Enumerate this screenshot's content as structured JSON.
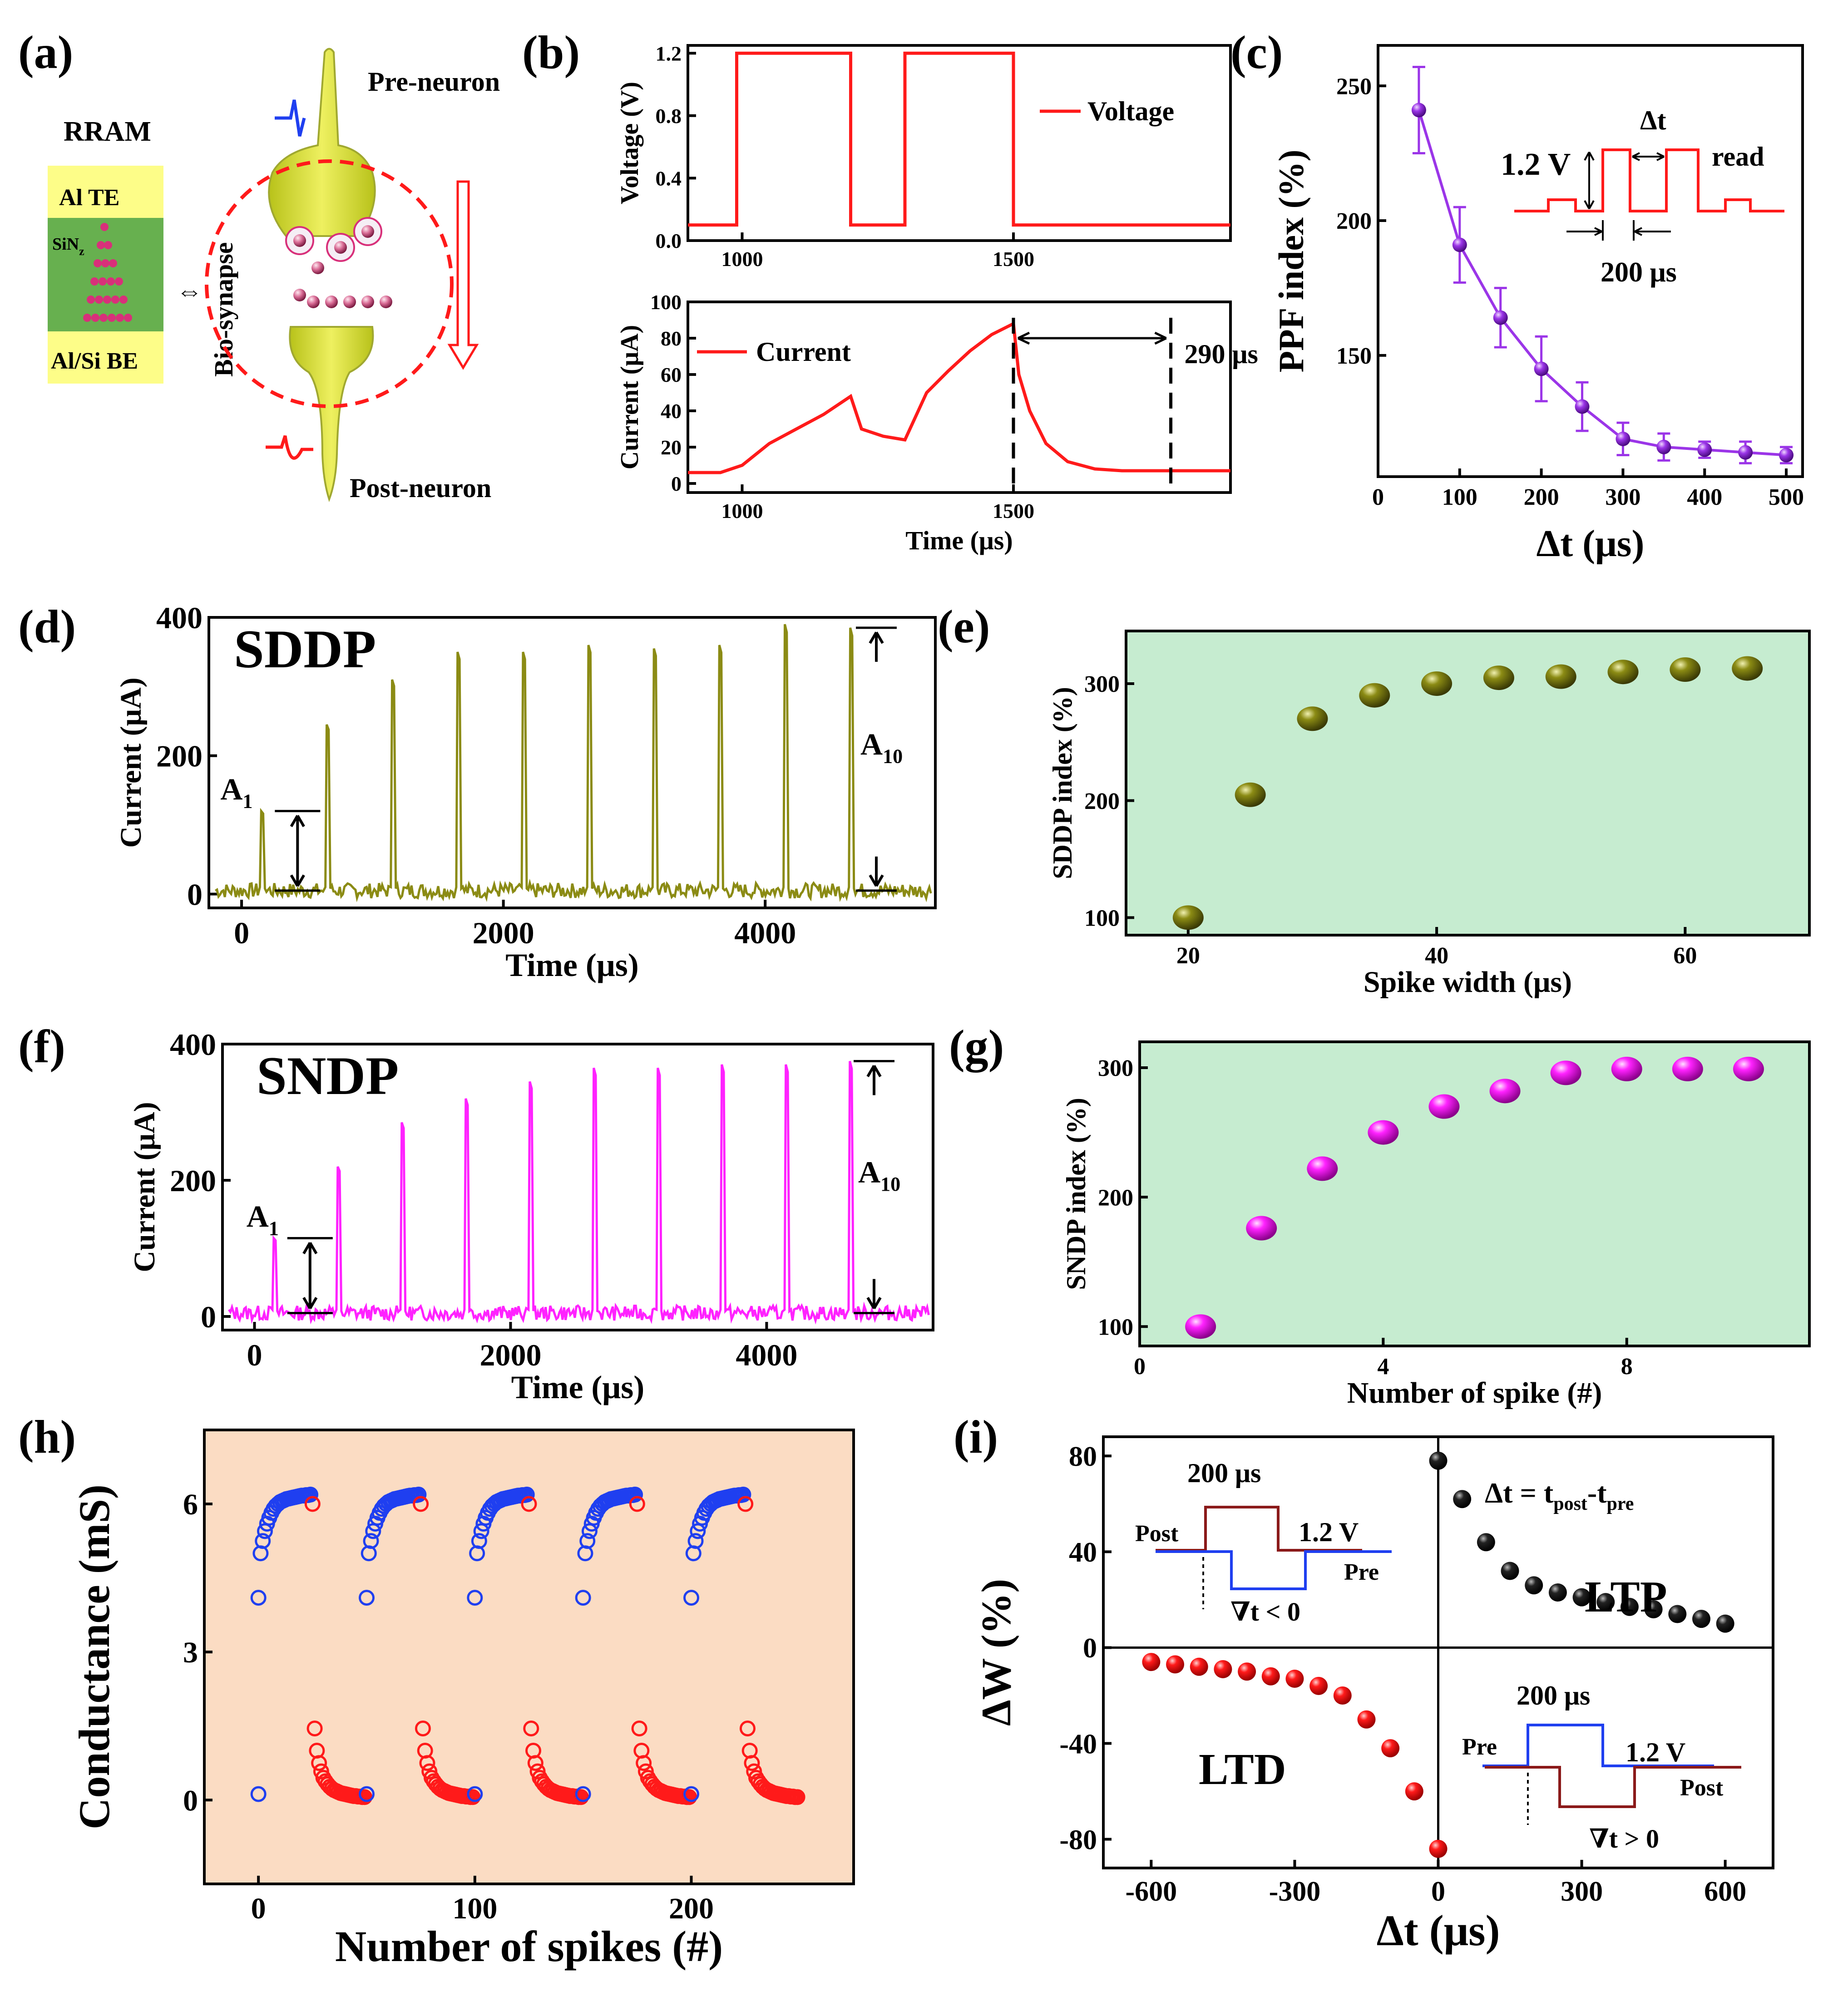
{
  "panels": {
    "a": "(a)",
    "b": "(b)",
    "c": "(c)",
    "d": "(d)",
    "e": "(e)",
    "f": "(f)",
    "g": "(g)",
    "h": "(h)",
    "i": "(i)"
  },
  "colors": {
    "red": "#ff1a1a",
    "olive": "#8b8b14",
    "magenta": "#ff22ff",
    "purple": "#9b35e8",
    "blue": "#1f3ff0",
    "darkred": "#8b1a1a",
    "yellow": "#fdfd88",
    "green": "#67b04f",
    "pink": "#d8307a",
    "peach": "#fbdcc3",
    "mint": "#c6ecd0"
  },
  "a": {
    "rram": "RRAM",
    "layers": [
      "Al TE",
      "SiN",
      "Al/Si BE"
    ],
    "sub": "z",
    "bio": "Bio-synapse",
    "pre": "Pre-neuron",
    "post": "Post-neuron"
  },
  "chart_data": [
    {
      "id": "b_top",
      "type": "line",
      "ylabel": "Voltage (V)",
      "xlim": [
        900,
        1900
      ],
      "ylim": [
        0,
        1.25
      ],
      "xticks": [
        1000,
        1500
      ],
      "yticks": [
        "0.0",
        "0.4",
        "0.8",
        "1.2"
      ],
      "legend": "Voltage",
      "x": [
        900,
        990,
        990,
        1200,
        1200,
        1300,
        1300,
        1500,
        1500,
        1900
      ],
      "y": [
        0.1,
        0.1,
        1.2,
        1.2,
        0.1,
        0.1,
        1.2,
        1.2,
        0.1,
        0.1
      ]
    },
    {
      "id": "b_bot",
      "type": "line",
      "xlabel": "Time (μs)",
      "ylabel": "Current (μA)",
      "xlim": [
        900,
        1900
      ],
      "ylim": [
        -5,
        100
      ],
      "xticks": [
        1000,
        1500
      ],
      "yticks": [
        "0",
        "20",
        "40",
        "60",
        "80",
        "100"
      ],
      "legend": "Current",
      "annotation": "290 μs",
      "x": [
        900,
        960,
        1000,
        1050,
        1100,
        1150,
        1200,
        1220,
        1260,
        1300,
        1340,
        1380,
        1420,
        1460,
        1500,
        1510,
        1530,
        1560,
        1600,
        1650,
        1700,
        1800,
        1900
      ],
      "y": [
        6,
        6,
        10,
        22,
        30,
        38,
        48,
        30,
        26,
        24,
        50,
        62,
        73,
        82,
        88,
        60,
        40,
        22,
        12,
        8,
        7,
        7,
        7
      ]
    },
    {
      "id": "c",
      "type": "line",
      "xlabel": "Δt (μs)",
      "ylabel": "PPF index (%)",
      "xlim": [
        0,
        520
      ],
      "ylim": [
        105,
        265
      ],
      "xticks": [
        "0",
        "100",
        "200",
        "300",
        "400",
        "500"
      ],
      "yticks": [
        "150",
        "200",
        "250"
      ],
      "x": [
        50,
        100,
        150,
        200,
        250,
        300,
        350,
        400,
        450,
        500
      ],
      "y": [
        241,
        191,
        164,
        145,
        131,
        119,
        116,
        115,
        114,
        113
      ],
      "err": [
        16,
        14,
        11,
        12,
        9,
        6,
        5,
        3,
        4,
        3
      ],
      "inset": {
        "v": "1.2 V",
        "dt": "Δt",
        "read": "read",
        "w": "200 μs"
      }
    },
    {
      "id": "d",
      "type": "line",
      "xlabel": "Time (μs)",
      "ylabel": "Current (μA)",
      "xlim": [
        -250,
        5300
      ],
      "ylim": [
        -20,
        400
      ],
      "xticks": [
        "0",
        "2000",
        "4000"
      ],
      "yticks": [
        "0",
        "200",
        "400"
      ],
      "title": "SDDP",
      "a1": "A",
      "a10": "A",
      "sub1": "1",
      "sub10": "10",
      "peaks_x": [
        150,
        650,
        1150,
        1650,
        2150,
        2650,
        3150,
        3650,
        4150,
        4650
      ],
      "peaks_y": [
        120,
        245,
        310,
        350,
        350,
        360,
        355,
        360,
        390,
        385
      ]
    },
    {
      "id": "e",
      "type": "scatter",
      "xlabel": "Spike width (μs)",
      "ylabel": "SDDP index (%)",
      "xlim": [
        15,
        70
      ],
      "ylim": [
        85,
        345
      ],
      "xticks": [
        "20",
        "40",
        "60"
      ],
      "yticks": [
        "100",
        "200",
        "300"
      ],
      "x": [
        20,
        25,
        30,
        35,
        40,
        45,
        50,
        55,
        60,
        65
      ],
      "y": [
        100,
        205,
        270,
        290,
        300,
        305,
        306,
        310,
        312,
        313
      ]
    },
    {
      "id": "f",
      "type": "line",
      "xlabel": "Time (μs)",
      "ylabel": "Current (μA)",
      "xlim": [
        -250,
        5300
      ],
      "ylim": [
        -20,
        400
      ],
      "xticks": [
        "0",
        "2000",
        "4000"
      ],
      "yticks": [
        "0",
        "200",
        "400"
      ],
      "title": "SNDP",
      "a1": "A",
      "a10": "A",
      "sub1": "1",
      "sub10": "10",
      "peaks_x": [
        150,
        650,
        1150,
        1650,
        2150,
        2650,
        3150,
        3650,
        4150,
        4650
      ],
      "peaks_y": [
        115,
        220,
        285,
        320,
        345,
        365,
        365,
        370,
        370,
        375
      ]
    },
    {
      "id": "g",
      "type": "scatter",
      "xlabel": "Number of spike (#)",
      "ylabel": "SNDP index (%)",
      "xlim": [
        0,
        11
      ],
      "ylim": [
        85,
        320
      ],
      "xticks": [
        "0",
        "4",
        "8"
      ],
      "yticks": [
        "100",
        "200",
        "300"
      ],
      "x": [
        1,
        2,
        3,
        4,
        5,
        6,
        7,
        8,
        9,
        10
      ],
      "y": [
        100,
        176,
        222,
        250,
        270,
        282,
        296,
        299,
        299,
        299
      ]
    },
    {
      "id": "h",
      "type": "scatter",
      "xlabel": "Number of spikes (#)",
      "ylabel": "Conductance (mS)",
      "xlim": [
        -25,
        275
      ],
      "ylim": [
        -1.7,
        7.5
      ],
      "xticks": [
        "0",
        "100",
        "200"
      ],
      "yticks": [
        "0",
        "3",
        "6"
      ],
      "cycles": [
        0,
        50,
        100,
        150,
        200
      ],
      "pot_low": 4.1,
      "pot_curve": [
        5.0,
        5.25,
        5.45,
        5.6,
        5.72,
        5.82,
        5.9,
        5.96,
        6.0,
        6.04,
        6.06,
        6.08,
        6.1,
        6.11,
        6.12,
        6.13,
        6.14,
        6.15,
        6.16,
        6.17,
        6.17,
        6.18,
        6.18,
        6.19
      ],
      "dep_top": 6.0,
      "dep_curve": [
        1.45,
        1.0,
        0.75,
        0.58,
        0.45,
        0.38,
        0.32,
        0.27,
        0.23,
        0.2,
        0.18,
        0.16,
        0.14,
        0.13,
        0.12,
        0.11,
        0.1,
        0.09,
        0.08,
        0.08,
        0.07,
        0.07,
        0.06,
        0.06
      ],
      "dep_base": 0.12
    },
    {
      "id": "i",
      "type": "scatter",
      "xlabel": "Δt (μs)",
      "ylabel": "ΔW (%)",
      "xlim": [
        -700,
        700
      ],
      "ylim": [
        -92,
        88
      ],
      "xticks": [
        "-600",
        "-300",
        "0",
        "300",
        "600"
      ],
      "yticks": [
        "-80",
        "-40",
        "0",
        "40",
        "80"
      ],
      "ltp_x": [
        0,
        50,
        100,
        150,
        200,
        250,
        300,
        350,
        400,
        450,
        500,
        550,
        600
      ],
      "ltp_y": [
        78,
        62,
        44,
        32,
        26,
        23,
        21,
        19,
        17,
        16,
        14,
        12,
        10
      ],
      "ltd_x": [
        -600,
        -550,
        -500,
        -450,
        -400,
        -350,
        -300,
        -250,
        -200,
        -150,
        -100,
        -50,
        0
      ],
      "ltd_y": [
        -6,
        -7,
        -8,
        -9,
        -10,
        -12,
        -13,
        -16,
        -20,
        -30,
        -42,
        -60,
        -84
      ],
      "ltp": "LTP",
      "ltd": "LTD",
      "eq": "Δt = t",
      "post_s": "post",
      "dash": "-t",
      "pre_s": "pre",
      "inset_w": "200 μs",
      "inset_v": "1.2 V",
      "lbl_post": "Post",
      "lbl_pre": "Pre",
      "neg": "∇t < 0",
      "pos": "∇t > 0"
    }
  ]
}
